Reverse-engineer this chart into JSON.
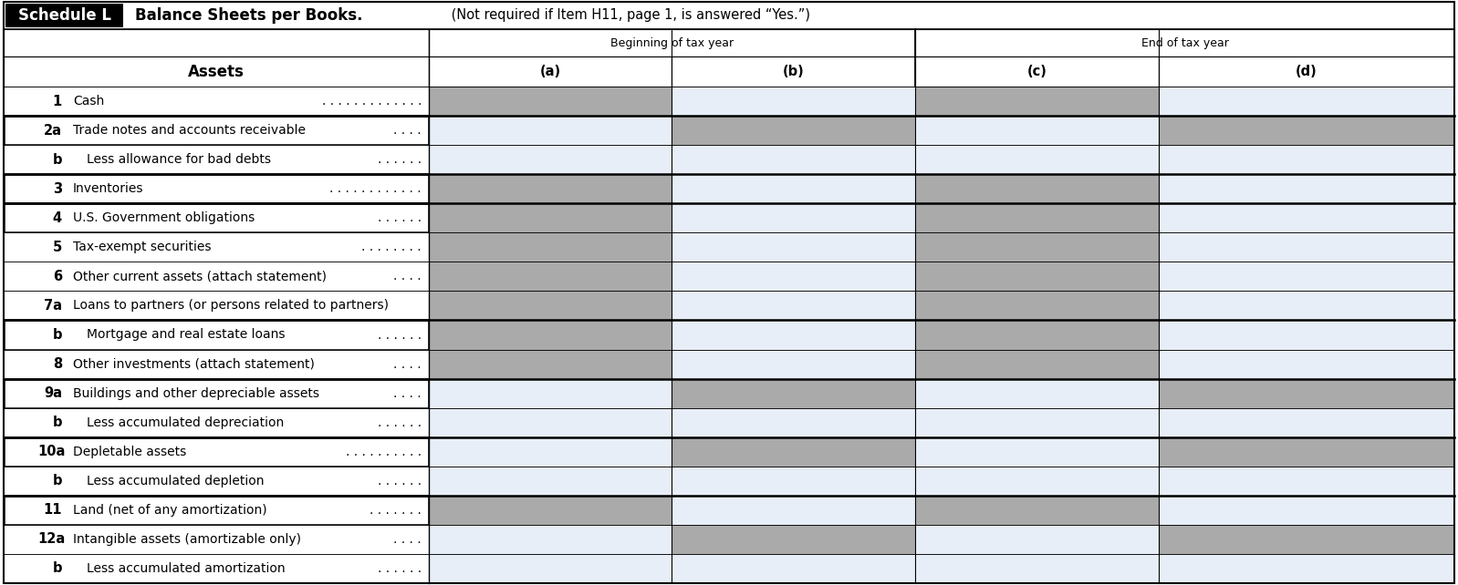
{
  "title_label": "Schedule L",
  "title_text": "Balance Sheets per Books.",
  "title_suffix": " (Not required if Item H11, page 1, is answered “Yes.”)",
  "col_header1": "Beginning of tax year",
  "col_header2": "End of tax year",
  "col_a": "(a)",
  "col_b": "(b)",
  "col_c": "(c)",
  "col_d": "(d)",
  "assets_label": "Assets",
  "rows": [
    {
      "num": "1",
      "indent": false,
      "label": "Cash",
      "dots": ". . . . . . . . . . . . .",
      "shade_a": true,
      "shade_b": false,
      "shade_c": true,
      "shade_d": false,
      "thick_above": false
    },
    {
      "num": "2a",
      "indent": false,
      "label": "Trade notes and accounts receivable",
      "dots": ". . . .",
      "shade_a": false,
      "shade_b": true,
      "shade_c": false,
      "shade_d": true,
      "thick_above": true
    },
    {
      "num": "b",
      "indent": true,
      "label": "Less allowance for bad debts",
      "dots": ". . . . . .",
      "shade_a": false,
      "shade_b": false,
      "shade_c": false,
      "shade_d": false,
      "thick_above": false
    },
    {
      "num": "3",
      "indent": false,
      "label": "Inventories",
      "dots": ". . . . . . . . . . . .",
      "shade_a": true,
      "shade_b": false,
      "shade_c": true,
      "shade_d": false,
      "thick_above": true
    },
    {
      "num": "4",
      "indent": false,
      "label": "U.S. Government obligations",
      "dots": ". . . . . .",
      "shade_a": true,
      "shade_b": false,
      "shade_c": true,
      "shade_d": false,
      "thick_above": true
    },
    {
      "num": "5",
      "indent": false,
      "label": "Tax-exempt securities",
      "dots": ". . . . . . . .",
      "shade_a": true,
      "shade_b": false,
      "shade_c": true,
      "shade_d": false,
      "thick_above": false
    },
    {
      "num": "6",
      "indent": false,
      "label": "Other current assets (attach statement)",
      "dots": ". . . .",
      "shade_a": true,
      "shade_b": false,
      "shade_c": true,
      "shade_d": false,
      "thick_above": false
    },
    {
      "num": "7a",
      "indent": false,
      "label": "Loans to partners (or persons related to partners)",
      "dots": "",
      "shade_a": true,
      "shade_b": false,
      "shade_c": true,
      "shade_d": false,
      "thick_above": false
    },
    {
      "num": "b",
      "indent": true,
      "label": "Mortgage and real estate loans",
      "dots": ". . . . . .",
      "shade_a": true,
      "shade_b": false,
      "shade_c": true,
      "shade_d": false,
      "thick_above": true
    },
    {
      "num": "8",
      "indent": false,
      "label": "Other investments (attach statement)",
      "dots": ". . . .",
      "shade_a": true,
      "shade_b": false,
      "shade_c": true,
      "shade_d": false,
      "thick_above": false
    },
    {
      "num": "9a",
      "indent": false,
      "label": "Buildings and other depreciable assets",
      "dots": ". . . .",
      "shade_a": false,
      "shade_b": true,
      "shade_c": false,
      "shade_d": true,
      "thick_above": true
    },
    {
      "num": "b",
      "indent": true,
      "label": "Less accumulated depreciation",
      "dots": ". . . . . .",
      "shade_a": false,
      "shade_b": false,
      "shade_c": false,
      "shade_d": false,
      "thick_above": false
    },
    {
      "num": "10a",
      "indent": false,
      "label": "Depletable assets",
      "dots": ". . . . . . . . . .",
      "shade_a": false,
      "shade_b": true,
      "shade_c": false,
      "shade_d": true,
      "thick_above": true
    },
    {
      "num": "b",
      "indent": true,
      "label": "Less accumulated depletion",
      "dots": ". . . . . .",
      "shade_a": false,
      "shade_b": false,
      "shade_c": false,
      "shade_d": false,
      "thick_above": false
    },
    {
      "num": "11",
      "indent": false,
      "label": "Land (net of any amortization)",
      "dots": ". . . . . . .",
      "shade_a": true,
      "shade_b": false,
      "shade_c": true,
      "shade_d": false,
      "thick_above": true
    },
    {
      "num": "12a",
      "indent": false,
      "label": "Intangible assets (amortizable only)",
      "dots": ". . . .",
      "shade_a": false,
      "shade_b": true,
      "shade_c": false,
      "shade_d": true,
      "thick_above": false
    },
    {
      "num": "b",
      "indent": true,
      "label": "Less accumulated amortization",
      "dots": ". . . . . .",
      "shade_a": false,
      "shade_b": false,
      "shade_c": false,
      "shade_d": false,
      "thick_above": false
    }
  ],
  "shade_color": "#aaaaaa",
  "light_color": "#e8eef8",
  "white_color": "#ffffff",
  "black_color": "#000000",
  "header_bg": "#000000",
  "header_fg": "#ffffff",
  "border_color": "#000000",
  "fig_width": 15.98,
  "fig_height": 6.42,
  "dpi": 100
}
